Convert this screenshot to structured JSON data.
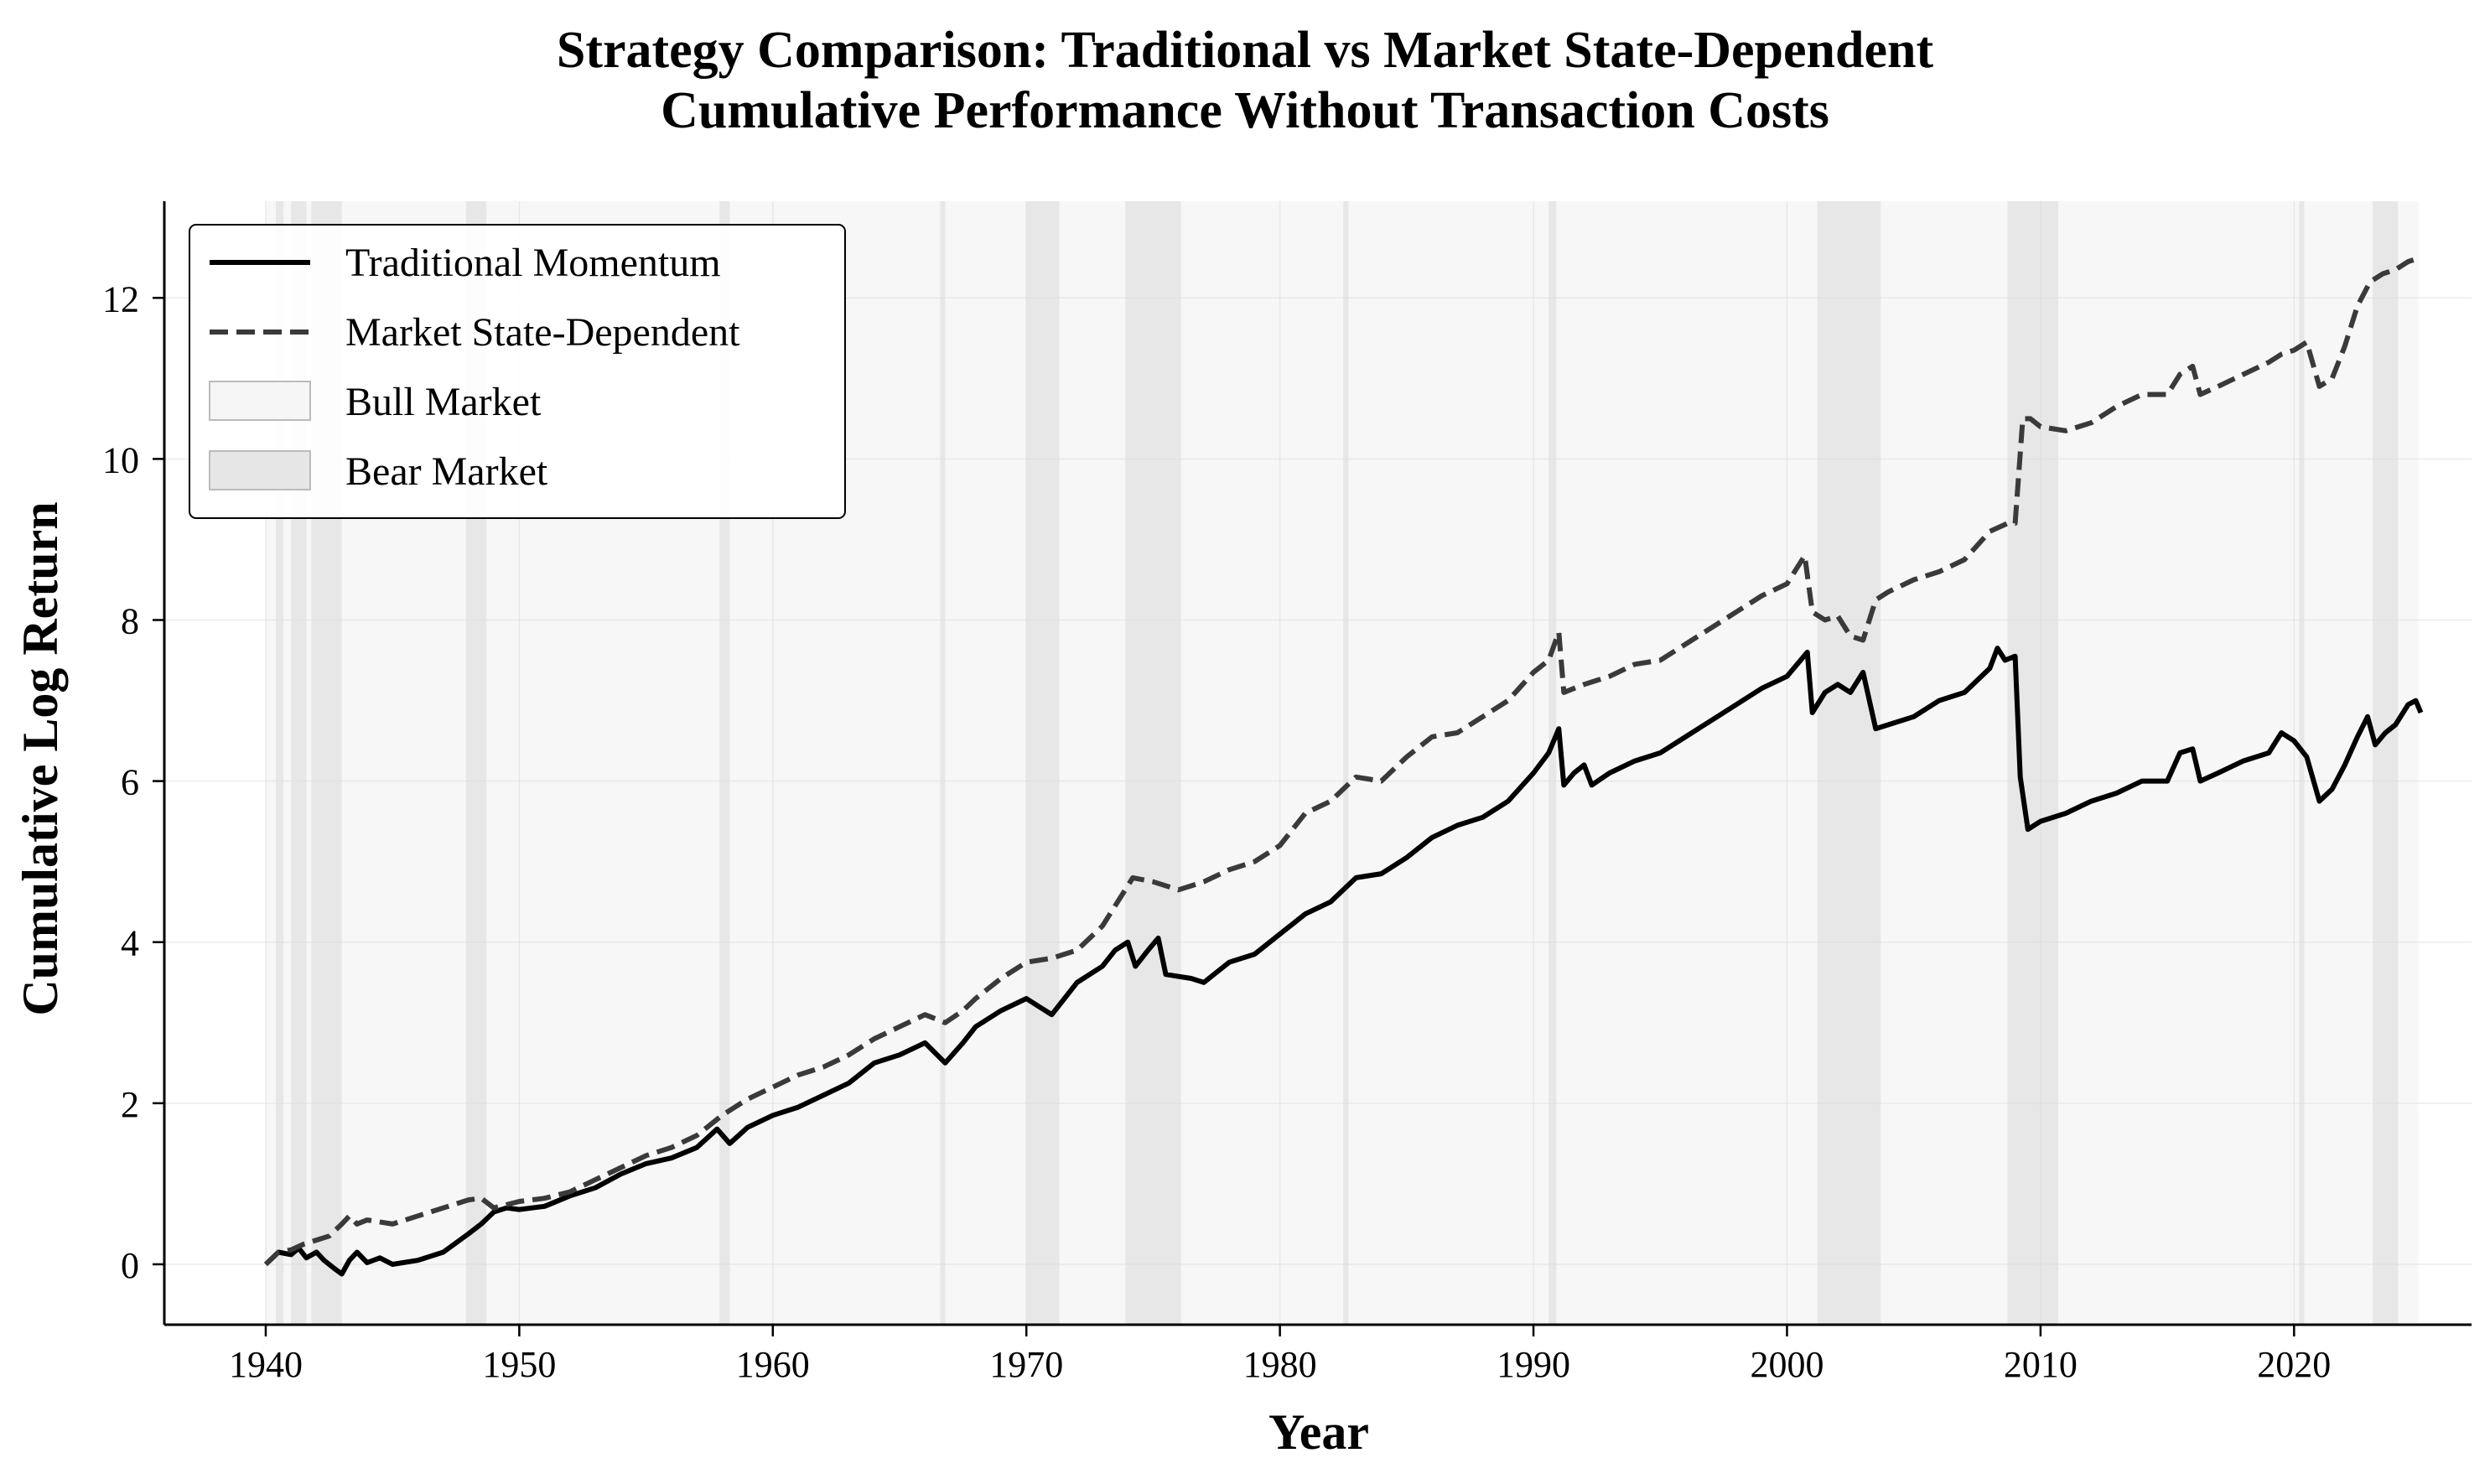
{
  "chart_data": {
    "type": "line",
    "title_lines": [
      "Strategy Comparison: Traditional vs Market State-Dependent",
      "Cumulative Performance Without Transaction Costs"
    ],
    "xlabel": "Year",
    "ylabel": "Cumulative Log Return",
    "xlim": [
      1936,
      2027
    ],
    "ylim": [
      -0.75,
      13.2
    ],
    "xticks": [
      1940,
      1950,
      1960,
      1970,
      1980,
      1990,
      2000,
      2010,
      2020
    ],
    "yticks": [
      0,
      2,
      4,
      6,
      8,
      10,
      12
    ],
    "grid": true,
    "legend_position": "top-left",
    "regimes_range": [
      1940.0,
      2024.9
    ],
    "bear_periods": [
      [
        1940.4,
        1940.7
      ],
      [
        1941.0,
        1941.6
      ],
      [
        1941.8,
        1943.0
      ],
      [
        1947.9,
        1948.7
      ],
      [
        1957.9,
        1958.3
      ],
      [
        1966.6,
        1966.8
      ],
      [
        1970.0,
        1971.3
      ],
      [
        1973.9,
        1976.1
      ],
      [
        1982.5,
        1982.7
      ],
      [
        1990.6,
        1990.9
      ],
      [
        2001.2,
        2003.7
      ],
      [
        2008.7,
        2010.7
      ],
      [
        2020.2,
        2020.4
      ],
      [
        2023.1,
        2024.1
      ]
    ],
    "legend": [
      {
        "label": "Traditional Momentum",
        "style": "solid"
      },
      {
        "label": "Market State-Dependent",
        "style": "dashed"
      },
      {
        "label": "Bull Market",
        "style": "bull-patch"
      },
      {
        "label": "Bear Market",
        "style": "bear-patch"
      }
    ],
    "series": [
      {
        "name": "Traditional Momentum",
        "color": "#000000",
        "style": "solid",
        "points": [
          [
            1940.0,
            0.0
          ],
          [
            1940.5,
            0.15
          ],
          [
            1941.0,
            0.12
          ],
          [
            1941.3,
            0.2
          ],
          [
            1941.6,
            0.08
          ],
          [
            1942.0,
            0.15
          ],
          [
            1942.3,
            0.05
          ],
          [
            1942.7,
            -0.05
          ],
          [
            1943.0,
            -0.12
          ],
          [
            1943.3,
            0.05
          ],
          [
            1943.6,
            0.15
          ],
          [
            1944.0,
            0.02
          ],
          [
            1944.5,
            0.08
          ],
          [
            1945.0,
            0.0
          ],
          [
            1946.0,
            0.05
          ],
          [
            1947.0,
            0.15
          ],
          [
            1948.0,
            0.38
          ],
          [
            1948.5,
            0.5
          ],
          [
            1949.0,
            0.65
          ],
          [
            1949.5,
            0.7
          ],
          [
            1950.0,
            0.68
          ],
          [
            1951.0,
            0.72
          ],
          [
            1952.0,
            0.85
          ],
          [
            1953.0,
            0.95
          ],
          [
            1954.0,
            1.12
          ],
          [
            1955.0,
            1.25
          ],
          [
            1956.0,
            1.32
          ],
          [
            1957.0,
            1.45
          ],
          [
            1957.8,
            1.68
          ],
          [
            1958.3,
            1.5
          ],
          [
            1959.0,
            1.7
          ],
          [
            1960.0,
            1.85
          ],
          [
            1961.0,
            1.95
          ],
          [
            1962.0,
            2.1
          ],
          [
            1963.0,
            2.25
          ],
          [
            1964.0,
            2.5
          ],
          [
            1965.0,
            2.6
          ],
          [
            1966.0,
            2.75
          ],
          [
            1966.8,
            2.5
          ],
          [
            1967.5,
            2.75
          ],
          [
            1968.0,
            2.95
          ],
          [
            1969.0,
            3.15
          ],
          [
            1970.0,
            3.3
          ],
          [
            1970.5,
            3.2
          ],
          [
            1971.0,
            3.1
          ],
          [
            1971.5,
            3.3
          ],
          [
            1972.0,
            3.5
          ],
          [
            1973.0,
            3.7
          ],
          [
            1973.5,
            3.9
          ],
          [
            1974.0,
            4.0
          ],
          [
            1974.3,
            3.7
          ],
          [
            1974.8,
            3.9
          ],
          [
            1975.2,
            4.05
          ],
          [
            1975.5,
            3.6
          ],
          [
            1976.5,
            3.55
          ],
          [
            1977.0,
            3.5
          ],
          [
            1978.0,
            3.75
          ],
          [
            1979.0,
            3.85
          ],
          [
            1980.0,
            4.1
          ],
          [
            1981.0,
            4.35
          ],
          [
            1982.0,
            4.5
          ],
          [
            1983.0,
            4.8
          ],
          [
            1984.0,
            4.85
          ],
          [
            1985.0,
            5.05
          ],
          [
            1986.0,
            5.3
          ],
          [
            1987.0,
            5.45
          ],
          [
            1988.0,
            5.55
          ],
          [
            1989.0,
            5.75
          ],
          [
            1990.0,
            6.1
          ],
          [
            1990.6,
            6.35
          ],
          [
            1991.0,
            6.65
          ],
          [
            1991.2,
            5.95
          ],
          [
            1991.6,
            6.1
          ],
          [
            1992.0,
            6.2
          ],
          [
            1992.3,
            5.95
          ],
          [
            1993.0,
            6.1
          ],
          [
            1994.0,
            6.25
          ],
          [
            1995.0,
            6.35
          ],
          [
            1996.0,
            6.55
          ],
          [
            1997.0,
            6.75
          ],
          [
            1998.0,
            6.95
          ],
          [
            1999.0,
            7.15
          ],
          [
            2000.0,
            7.3
          ],
          [
            2000.8,
            7.6
          ],
          [
            2001.0,
            6.85
          ],
          [
            2001.5,
            7.1
          ],
          [
            2002.0,
            7.2
          ],
          [
            2002.5,
            7.1
          ],
          [
            2003.0,
            7.35
          ],
          [
            2003.5,
            6.65
          ],
          [
            2004.0,
            6.7
          ],
          [
            2005.0,
            6.8
          ],
          [
            2006.0,
            7.0
          ],
          [
            2007.0,
            7.1
          ],
          [
            2008.0,
            7.4
          ],
          [
            2008.3,
            7.65
          ],
          [
            2008.6,
            7.5
          ],
          [
            2009.0,
            7.55
          ],
          [
            2009.2,
            6.05
          ],
          [
            2009.5,
            5.4
          ],
          [
            2010.0,
            5.5
          ],
          [
            2011.0,
            5.6
          ],
          [
            2012.0,
            5.75
          ],
          [
            2013.0,
            5.85
          ],
          [
            2014.0,
            6.0
          ],
          [
            2015.0,
            6.0
          ],
          [
            2015.5,
            6.35
          ],
          [
            2016.0,
            6.4
          ],
          [
            2016.3,
            6.0
          ],
          [
            2017.0,
            6.1
          ],
          [
            2018.0,
            6.25
          ],
          [
            2019.0,
            6.35
          ],
          [
            2019.5,
            6.6
          ],
          [
            2020.0,
            6.5
          ],
          [
            2020.5,
            6.3
          ],
          [
            2021.0,
            5.75
          ],
          [
            2021.5,
            5.9
          ],
          [
            2022.0,
            6.2
          ],
          [
            2022.5,
            6.55
          ],
          [
            2022.9,
            6.8
          ],
          [
            2023.2,
            6.45
          ],
          [
            2023.6,
            6.6
          ],
          [
            2024.0,
            6.7
          ],
          [
            2024.5,
            6.95
          ],
          [
            2024.8,
            7.0
          ],
          [
            2025.0,
            6.85
          ]
        ]
      },
      {
        "name": "Market State-Dependent",
        "color": "#3a3a3a",
        "style": "dashed",
        "points": [
          [
            1940.0,
            0.0
          ],
          [
            1940.5,
            0.15
          ],
          [
            1941.0,
            0.18
          ],
          [
            1941.5,
            0.25
          ],
          [
            1942.0,
            0.3
          ],
          [
            1942.5,
            0.35
          ],
          [
            1943.0,
            0.5
          ],
          [
            1943.3,
            0.6
          ],
          [
            1943.6,
            0.5
          ],
          [
            1944.0,
            0.55
          ],
          [
            1945.0,
            0.5
          ],
          [
            1946.0,
            0.6
          ],
          [
            1947.0,
            0.7
          ],
          [
            1948.0,
            0.8
          ],
          [
            1948.5,
            0.82
          ],
          [
            1949.0,
            0.7
          ],
          [
            1950.0,
            0.78
          ],
          [
            1951.0,
            0.82
          ],
          [
            1952.0,
            0.9
          ],
          [
            1953.0,
            1.05
          ],
          [
            1954.0,
            1.2
          ],
          [
            1955.0,
            1.35
          ],
          [
            1956.0,
            1.45
          ],
          [
            1957.0,
            1.6
          ],
          [
            1958.0,
            1.85
          ],
          [
            1958.5,
            1.95
          ],
          [
            1959.0,
            2.05
          ],
          [
            1960.0,
            2.2
          ],
          [
            1961.0,
            2.35
          ],
          [
            1962.0,
            2.45
          ],
          [
            1963.0,
            2.6
          ],
          [
            1964.0,
            2.8
          ],
          [
            1965.0,
            2.95
          ],
          [
            1966.0,
            3.1
          ],
          [
            1966.8,
            3.0
          ],
          [
            1967.5,
            3.15
          ],
          [
            1968.0,
            3.3
          ],
          [
            1969.0,
            3.55
          ],
          [
            1970.0,
            3.75
          ],
          [
            1971.0,
            3.8
          ],
          [
            1972.0,
            3.9
          ],
          [
            1973.0,
            4.2
          ],
          [
            1973.8,
            4.6
          ],
          [
            1974.2,
            4.8
          ],
          [
            1975.0,
            4.75
          ],
          [
            1976.0,
            4.65
          ],
          [
            1977.0,
            4.75
          ],
          [
            1978.0,
            4.9
          ],
          [
            1979.0,
            5.0
          ],
          [
            1980.0,
            5.2
          ],
          [
            1981.0,
            5.6
          ],
          [
            1982.0,
            5.75
          ],
          [
            1983.0,
            6.05
          ],
          [
            1984.0,
            6.0
          ],
          [
            1985.0,
            6.3
          ],
          [
            1986.0,
            6.55
          ],
          [
            1987.0,
            6.6
          ],
          [
            1988.0,
            6.8
          ],
          [
            1989.0,
            7.0
          ],
          [
            1990.0,
            7.35
          ],
          [
            1990.6,
            7.5
          ],
          [
            1991.0,
            7.85
          ],
          [
            1991.2,
            7.1
          ],
          [
            1992.0,
            7.2
          ],
          [
            1993.0,
            7.3
          ],
          [
            1994.0,
            7.45
          ],
          [
            1995.0,
            7.5
          ],
          [
            1996.0,
            7.7
          ],
          [
            1997.0,
            7.9
          ],
          [
            1998.0,
            8.1
          ],
          [
            1999.0,
            8.3
          ],
          [
            2000.0,
            8.45
          ],
          [
            2000.7,
            8.8
          ],
          [
            2001.0,
            8.1
          ],
          [
            2001.5,
            8.0
          ],
          [
            2002.0,
            8.05
          ],
          [
            2002.5,
            7.8
          ],
          [
            2003.0,
            7.75
          ],
          [
            2003.5,
            8.25
          ],
          [
            2004.0,
            8.35
          ],
          [
            2005.0,
            8.5
          ],
          [
            2006.0,
            8.6
          ],
          [
            2007.0,
            8.75
          ],
          [
            2008.0,
            9.1
          ],
          [
            2008.7,
            9.2
          ],
          [
            2009.0,
            9.2
          ],
          [
            2009.3,
            10.5
          ],
          [
            2009.6,
            10.5
          ],
          [
            2010.0,
            10.4
          ],
          [
            2011.0,
            10.35
          ],
          [
            2012.0,
            10.45
          ],
          [
            2013.0,
            10.65
          ],
          [
            2014.0,
            10.8
          ],
          [
            2015.0,
            10.8
          ],
          [
            2015.5,
            11.05
          ],
          [
            2016.0,
            11.15
          ],
          [
            2016.3,
            10.8
          ],
          [
            2017.0,
            10.9
          ],
          [
            2018.0,
            11.05
          ],
          [
            2019.0,
            11.2
          ],
          [
            2019.5,
            11.3
          ],
          [
            2020.0,
            11.35
          ],
          [
            2020.5,
            11.45
          ],
          [
            2021.0,
            10.9
          ],
          [
            2021.5,
            11.0
          ],
          [
            2022.0,
            11.4
          ],
          [
            2022.5,
            11.9
          ],
          [
            2023.0,
            12.2
          ],
          [
            2023.5,
            12.3
          ],
          [
            2024.0,
            12.35
          ],
          [
            2024.5,
            12.45
          ],
          [
            2025.0,
            12.5
          ]
        ]
      }
    ]
  }
}
